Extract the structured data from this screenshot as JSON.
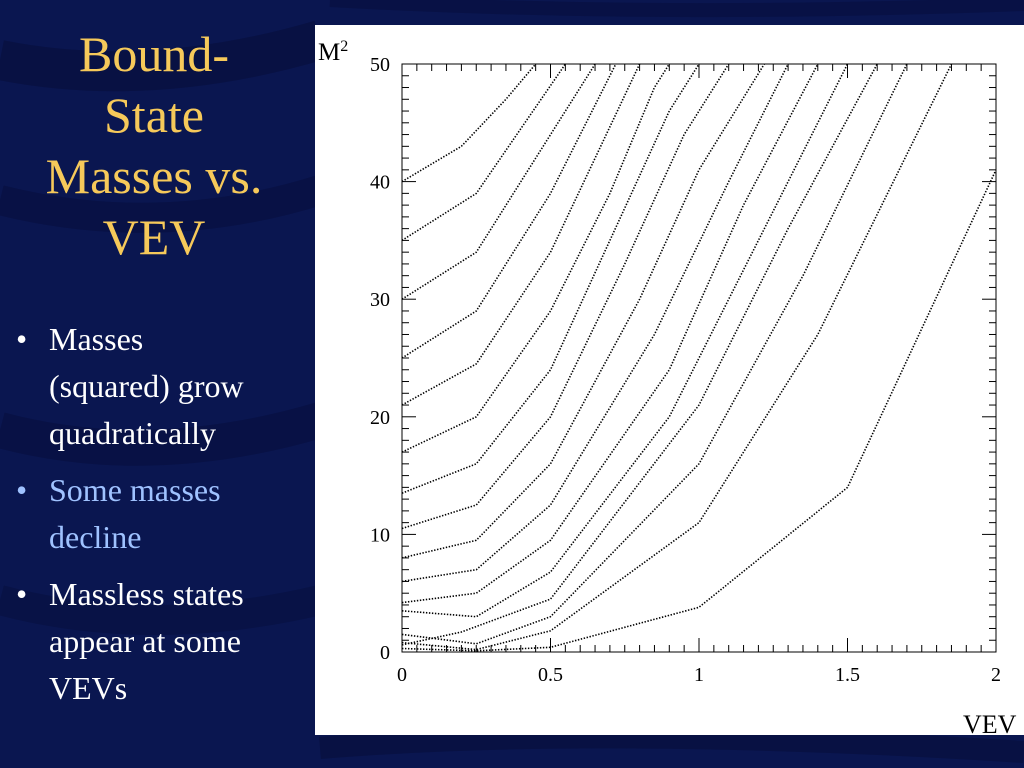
{
  "slide": {
    "title_lines": [
      "Bound-",
      "State",
      "Masses vs.",
      "VEV"
    ],
    "bullets": [
      {
        "lines": [
          "Masses",
          "(squared) grow",
          "quadratically"
        ],
        "highlight": false
      },
      {
        "lines": [
          "Some masses",
          "decline"
        ],
        "highlight": true
      },
      {
        "lines": [
          "Massless states",
          "appear at some",
          "VEVs"
        ],
        "highlight": false
      }
    ],
    "bullet_symbol": "•",
    "colors": {
      "background": "#0a1650",
      "title": "#f6c95a",
      "text": "#ffffff",
      "highlight": "#9fc2ff",
      "plot_background": "#ffffff"
    }
  },
  "chart_data": {
    "type": "scatter",
    "title": "",
    "xlabel": "VEV",
    "ylabel": "M",
    "ylabel_superscript": "2",
    "xlim": [
      0,
      2
    ],
    "ylim": [
      0,
      50
    ],
    "xticks": [
      0,
      0.5,
      1,
      1.5,
      2
    ],
    "xtick_labels": [
      "0",
      "0.5",
      "1",
      "1.5",
      "2"
    ],
    "yticks": [
      0,
      10,
      20,
      30,
      40,
      50
    ],
    "ytick_labels": [
      "0",
      "10",
      "20",
      "30",
      "40",
      "50"
    ],
    "legend": "none",
    "grid": false,
    "marker": "dot",
    "series": [
      {
        "points": [
          [
            0,
            0.3
          ],
          [
            0.25,
            0.1
          ],
          [
            0.5,
            0.4
          ],
          [
            1.0,
            3.8
          ],
          [
            1.5,
            14.0
          ],
          [
            2.0,
            41.0
          ]
        ]
      },
      {
        "points": [
          [
            0,
            0.8
          ],
          [
            0.25,
            0.2
          ],
          [
            0.5,
            1.8
          ],
          [
            1.0,
            11.0
          ],
          [
            1.4,
            27.0
          ],
          [
            1.85,
            50.0
          ]
        ]
      },
      {
        "points": [
          [
            0,
            1.5
          ],
          [
            0.25,
            0.7
          ],
          [
            0.5,
            3.0
          ],
          [
            1.0,
            16.0
          ],
          [
            1.35,
            32.0
          ],
          [
            1.7,
            50.0
          ]
        ]
      },
      {
        "points": [
          [
            0,
            0.6
          ],
          [
            0.2,
            1.7
          ],
          [
            0.5,
            4.5
          ],
          [
            1.0,
            21.0
          ],
          [
            1.3,
            36.0
          ],
          [
            1.6,
            50.0
          ]
        ]
      },
      {
        "points": [
          [
            0,
            3.5
          ],
          [
            0.25,
            3.0
          ],
          [
            0.5,
            6.8
          ],
          [
            0.9,
            20.0
          ],
          [
            1.2,
            35.0
          ],
          [
            1.5,
            50.0
          ]
        ]
      },
      {
        "points": [
          [
            0,
            4.2
          ],
          [
            0.25,
            5.0
          ],
          [
            0.5,
            9.5
          ],
          [
            0.9,
            24.0
          ],
          [
            1.15,
            38.0
          ],
          [
            1.4,
            50.0
          ]
        ]
      },
      {
        "points": [
          [
            0,
            6.0
          ],
          [
            0.25,
            7.0
          ],
          [
            0.5,
            12.5
          ],
          [
            0.85,
            27.0
          ],
          [
            1.1,
            40.0
          ],
          [
            1.3,
            50.0
          ]
        ]
      },
      {
        "points": [
          [
            0,
            8.0
          ],
          [
            0.25,
            9.5
          ],
          [
            0.5,
            16.0
          ],
          [
            0.8,
            30.0
          ],
          [
            1.0,
            41.0
          ],
          [
            1.22,
            50.0
          ]
        ]
      },
      {
        "points": [
          [
            0,
            10.5
          ],
          [
            0.25,
            12.5
          ],
          [
            0.5,
            20.0
          ],
          [
            0.75,
            33.0
          ],
          [
            0.95,
            44.0
          ],
          [
            1.1,
            50.0
          ]
        ]
      },
      {
        "points": [
          [
            0,
            13.5
          ],
          [
            0.25,
            16.0
          ],
          [
            0.5,
            24.0
          ],
          [
            0.7,
            35.0
          ],
          [
            0.9,
            46.0
          ],
          [
            1.0,
            50.0
          ]
        ]
      },
      {
        "points": [
          [
            0,
            17.0
          ],
          [
            0.25,
            20.0
          ],
          [
            0.5,
            29.0
          ],
          [
            0.7,
            39.0
          ],
          [
            0.85,
            48.0
          ],
          [
            0.9,
            50.0
          ]
        ]
      },
      {
        "points": [
          [
            0,
            21.0
          ],
          [
            0.25,
            24.5
          ],
          [
            0.5,
            34.0
          ],
          [
            0.65,
            42.0
          ],
          [
            0.8,
            50.0
          ]
        ]
      },
      {
        "points": [
          [
            0,
            25.0
          ],
          [
            0.25,
            29.0
          ],
          [
            0.5,
            39.0
          ],
          [
            0.6,
            44.0
          ],
          [
            0.72,
            50.0
          ]
        ]
      },
      {
        "points": [
          [
            0,
            30.0
          ],
          [
            0.25,
            34.0
          ],
          [
            0.45,
            42.0
          ],
          [
            0.65,
            50.0
          ]
        ]
      },
      {
        "points": [
          [
            0,
            35.0
          ],
          [
            0.25,
            39.0
          ],
          [
            0.4,
            44.5
          ],
          [
            0.55,
            50.0
          ]
        ]
      },
      {
        "points": [
          [
            0,
            40.0
          ],
          [
            0.2,
            43.0
          ],
          [
            0.35,
            47.0
          ],
          [
            0.45,
            50.0
          ]
        ]
      }
    ]
  }
}
